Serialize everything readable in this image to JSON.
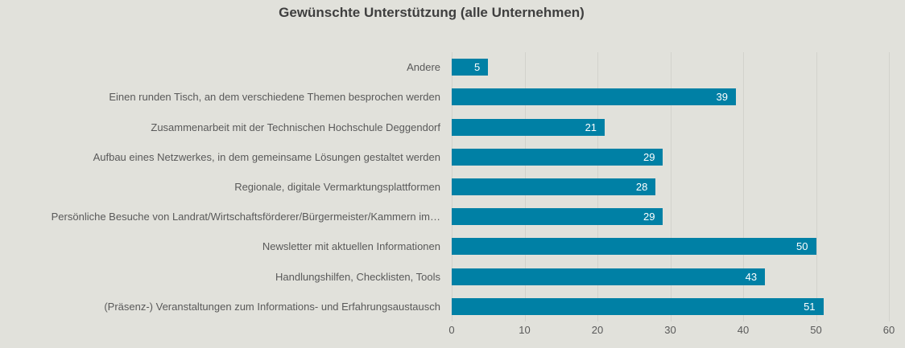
{
  "title": "Gewünschte Unterstützung (alle Unternehmen)",
  "colors": {
    "background": "#e1e1db",
    "bar": "#0080a5",
    "gridline": "#d2d2cc",
    "title_text": "#3f3f3f",
    "label_text": "#595959",
    "value_label_text": "#ffffff"
  },
  "chart_data": {
    "type": "bar",
    "orientation": "horizontal",
    "title": "Gewünschte Unterstützung (alle Unternehmen)",
    "categories": [
      "Andere",
      "Einen runden Tisch, an dem verschiedene Themen besprochen werden",
      "Zusammenarbeit mit der Technischen Hochschule Deggendorf",
      "Aufbau eines Netzwerkes, in dem gemeinsame Lösungen gestaltet werden",
      "Regionale, digitale Vermarktungsplattformen",
      "Persönliche Besuche von Landrat/Wirtschaftsförderer/Bürgermeister/Kammern im…",
      "Newsletter mit aktuellen Informationen",
      "Handlungshilfen, Checklisten, Tools",
      "(Präsenz-) Veranstaltungen zum Informations- und Erfahrungsaustausch"
    ],
    "values": [
      5,
      39,
      21,
      29,
      28,
      29,
      50,
      43,
      51
    ],
    "xlabel": "",
    "ylabel": "",
    "xlim": [
      0,
      60
    ],
    "xticks": [
      0,
      10,
      20,
      30,
      40,
      50,
      60
    ],
    "grid": true,
    "legend": false,
    "value_label_position": "inside-end"
  }
}
